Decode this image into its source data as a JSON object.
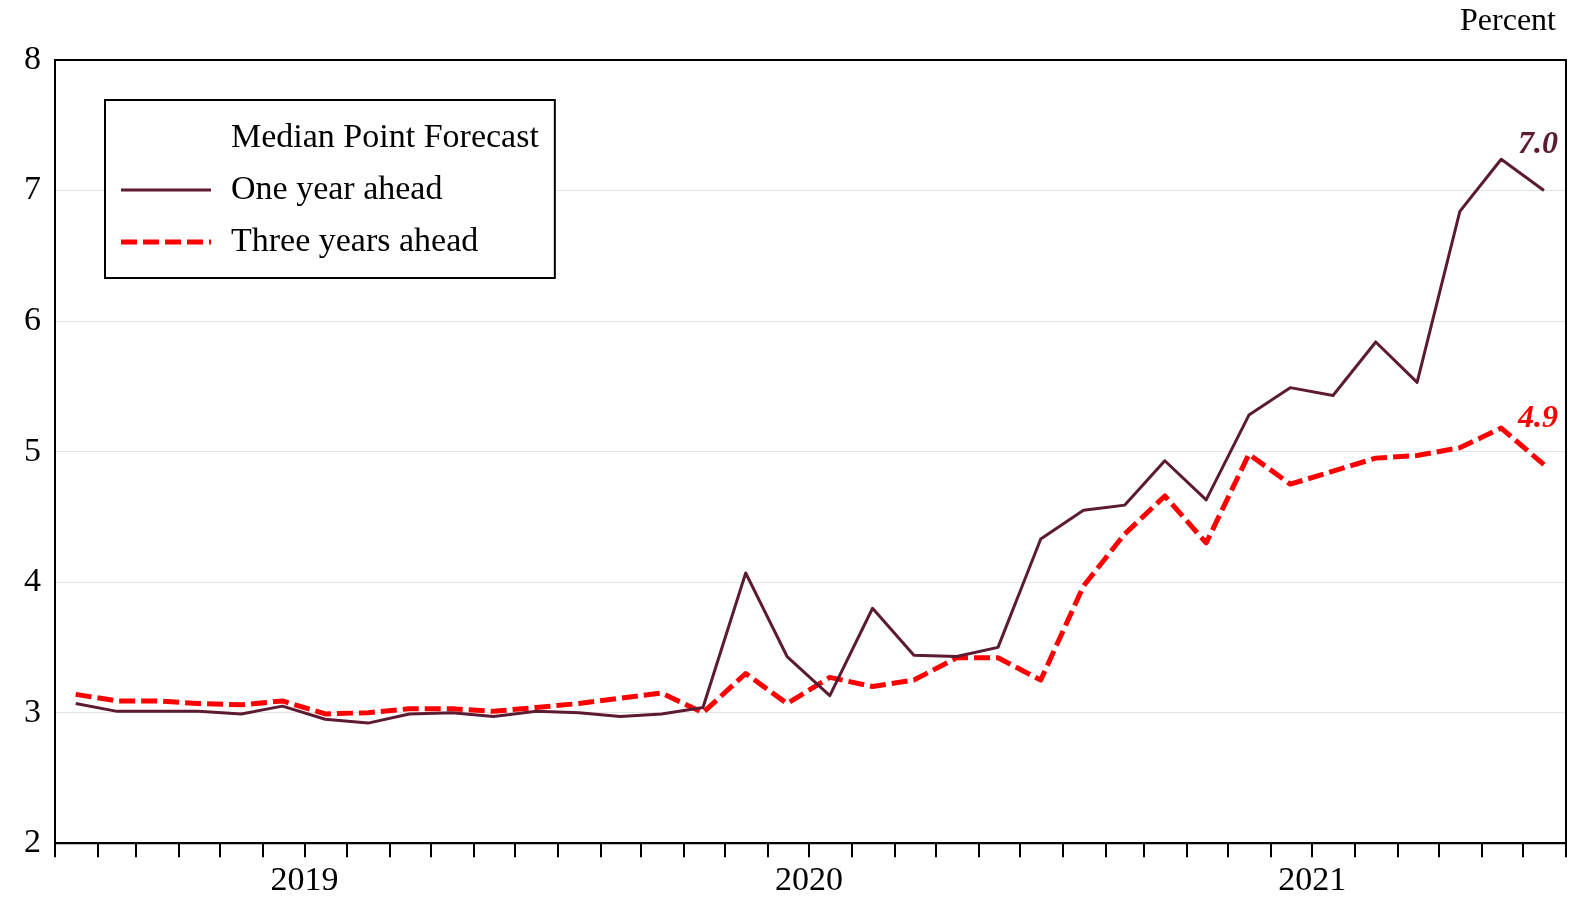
{
  "chart_data": {
    "type": "line",
    "ylabel": "Percent",
    "legend_title": "Median Point Forecast",
    "legend": "top left",
    "grid": "y",
    "marker": "none",
    "x": [
      "2019-01-16",
      "2019-02-15",
      "2019-03-16",
      "2019-04-15",
      "2019-05-16",
      "2019-06-15",
      "2019-07-16",
      "2019-08-16",
      "2019-09-15",
      "2019-10-16",
      "2019-11-15",
      "2019-12-16",
      "2020-01-16",
      "2020-02-15",
      "2020-03-16",
      "2020-04-15",
      "2020-05-16",
      "2020-06-15",
      "2020-07-16",
      "2020-08-16",
      "2020-09-15",
      "2020-10-16",
      "2020-11-15",
      "2020-12-16",
      "2021-01-16",
      "2021-02-15",
      "2021-03-16",
      "2021-04-15",
      "2021-05-16",
      "2021-06-15",
      "2021-07-16",
      "2021-08-16",
      "2021-09-15",
      "2021-10-16",
      "2021-11-15",
      "2021-12-16"
    ],
    "series": [
      {
        "name": "One year ahead",
        "color": "#5c1a33",
        "line_style": "solid",
        "values": [
          3.07,
          3.01,
          3.01,
          3.01,
          2.99,
          3.05,
          2.95,
          2.92,
          2.99,
          3.0,
          2.97,
          3.01,
          3.0,
          2.97,
          2.99,
          3.04,
          4.07,
          3.43,
          3.13,
          3.8,
          3.44,
          3.43,
          3.5,
          4.33,
          4.55,
          4.59,
          4.93,
          4.63,
          5.28,
          5.49,
          5.43,
          5.84,
          5.53,
          6.84,
          7.24,
          7.0
        ]
      },
      {
        "name": "Three years ahead",
        "color": "#ff0000",
        "line_style": "dashed",
        "values": [
          3.14,
          3.09,
          3.09,
          3.07,
          3.06,
          3.09,
          2.99,
          3.0,
          3.03,
          3.03,
          3.01,
          3.04,
          3.07,
          3.11,
          3.15,
          3.0,
          3.3,
          3.07,
          3.27,
          3.2,
          3.25,
          3.42,
          3.42,
          3.25,
          3.97,
          4.37,
          4.66,
          4.3,
          4.98,
          4.75,
          4.85,
          4.95,
          4.97,
          5.03,
          5.18,
          4.9
        ]
      }
    ],
    "annotations": [
      {
        "text": "7.0",
        "x": "2021-12-16",
        "y": 7.0
      },
      {
        "text": "4.9",
        "x": "2021-12-16",
        "y": 4.9
      }
    ],
    "ylim": [
      2,
      8
    ],
    "yticks": [
      2,
      3,
      4,
      5,
      6,
      7,
      8
    ],
    "xlim": [
      "2019-01-01",
      "2022-01-01"
    ],
    "xticks": [
      {
        "value": "2019-01-01",
        "label": null
      },
      {
        "value": "2019-02-01",
        "label": null
      },
      {
        "value": "2019-03-01",
        "label": null
      },
      {
        "value": "2019-04-01",
        "label": null
      },
      {
        "value": "2019-05-01",
        "label": null
      },
      {
        "value": "2019-06-01",
        "label": null
      },
      {
        "value": "2019-07-01",
        "label": "2019"
      },
      {
        "value": "2019-08-01",
        "label": null
      },
      {
        "value": "2019-09-01",
        "label": null
      },
      {
        "value": "2019-10-01",
        "label": null
      },
      {
        "value": "2019-11-01",
        "label": null
      },
      {
        "value": "2019-12-01",
        "label": null
      },
      {
        "value": "2020-01-01",
        "label": null
      },
      {
        "value": "2020-02-01",
        "label": null
      },
      {
        "value": "2020-03-01",
        "label": null
      },
      {
        "value": "2020-04-01",
        "label": null
      },
      {
        "value": "2020-05-01",
        "label": null
      },
      {
        "value": "2020-06-01",
        "label": null
      },
      {
        "value": "2020-07-01",
        "label": "2020"
      },
      {
        "value": "2020-08-01",
        "label": null
      },
      {
        "value": "2020-09-01",
        "label": null
      },
      {
        "value": "2020-10-01",
        "label": null
      },
      {
        "value": "2020-11-01",
        "label": null
      },
      {
        "value": "2020-12-01",
        "label": null
      },
      {
        "value": "2021-01-01",
        "label": null
      },
      {
        "value": "2021-02-01",
        "label": null
      },
      {
        "value": "2021-03-01",
        "label": null
      },
      {
        "value": "2021-04-01",
        "label": null
      },
      {
        "value": "2021-05-01",
        "label": null
      },
      {
        "value": "2021-06-01",
        "label": null
      },
      {
        "value": "2021-07-01",
        "label": "2021"
      },
      {
        "value": "2021-08-01",
        "label": null
      },
      {
        "value": "2021-09-01",
        "label": null
      },
      {
        "value": "2021-10-01",
        "label": null
      },
      {
        "value": "2021-11-01",
        "label": null
      },
      {
        "value": "2021-12-01",
        "label": null
      },
      {
        "value": "2022-01-01",
        "label": null
      }
    ]
  }
}
